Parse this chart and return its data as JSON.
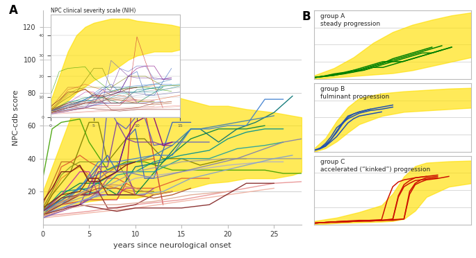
{
  "title_A": "A",
  "title_B": "B",
  "xlabel": "years since neurological onset",
  "ylabel": "NPC-cdb score",
  "inset_title": "NPC clinical severity scale (NIH)",
  "group_A_label": "group A\nsteady progression",
  "group_B_label": "group B\nfulminant progression",
  "group_C_label": "group C\naccelerated (“kinked”) progression",
  "yellow": "#FFE000",
  "yellow_alpha": 0.65,
  "bg_color": "#FFFFFF",
  "grid_color": "#BBBBBB",
  "ax_label_color": "#333333",
  "main_xlim": [
    0,
    28
  ],
  "main_ylim": [
    0,
    130
  ],
  "main_yticks": [
    20,
    40,
    60,
    80,
    100,
    120
  ],
  "main_xticks": [
    0,
    5,
    10,
    15,
    20,
    25
  ],
  "group_A_color": "#008000",
  "group_B_color": "#2050B0",
  "group_C_color": "#CC1100"
}
